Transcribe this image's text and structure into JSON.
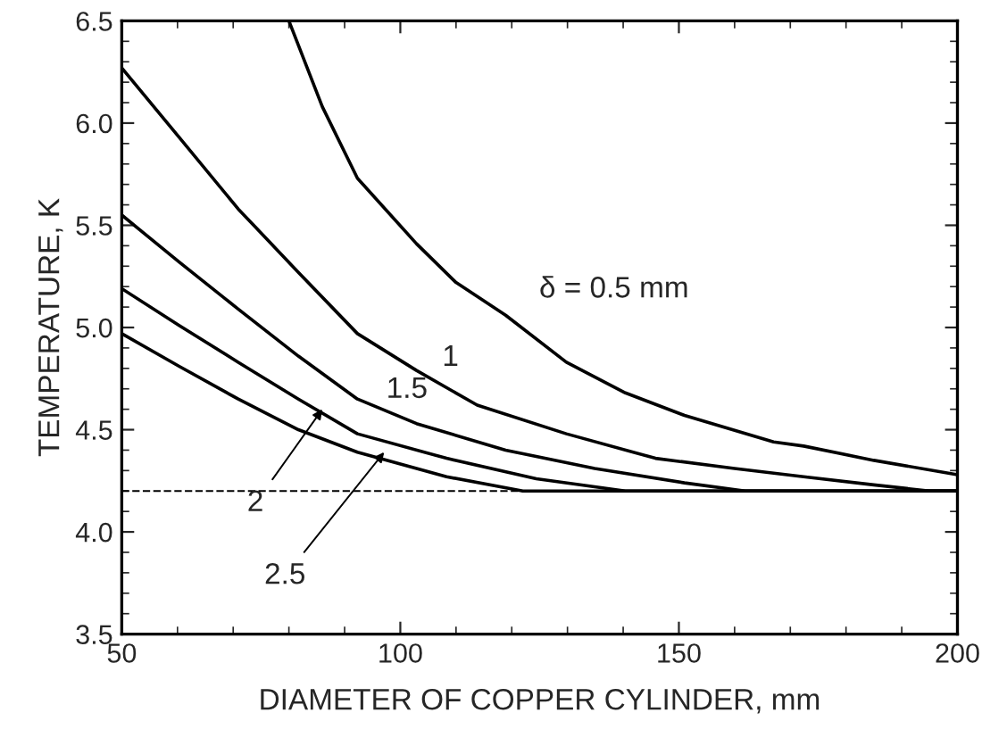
{
  "chart_data": {
    "type": "line",
    "xlabel": "DIAMETER OF COPPER CYLINDER, mm",
    "ylabel": "TEMPERATURE, K",
    "xlim": [
      50,
      200
    ],
    "xticks": [
      50,
      100,
      150,
      200
    ],
    "ylim": [
      3.5,
      6.5
    ],
    "yticks": [
      3.5,
      {
        "value": 4,
        "label": "4.0"
      },
      4.5,
      {
        "value": 5,
        "label": "5.0"
      },
      5.5,
      {
        "value": 6,
        "label": "6.0"
      },
      6.5
    ],
    "grid": false,
    "legend": false,
    "marker": "none",
    "line_style": "solid",
    "series": [
      {
        "color": "#000000",
        "x": [
          80,
          86,
          92.3,
          102.9,
          110,
          118.9,
          129.8,
          140.4,
          151,
          167,
          172.4,
          185,
          200
        ],
        "values": [
          6.5,
          6.08,
          5.73,
          5.41,
          5.22,
          5.06,
          4.83,
          4.68,
          4.57,
          4.44,
          4.42,
          4.35,
          4.28
        ]
      },
      {
        "color": "#000000",
        "x": [
          50,
          60.3,
          70.9,
          81.7,
          92.3,
          102.9,
          113.8,
          129.8,
          145.8,
          160,
          172.4,
          185,
          195,
          200
        ],
        "values": [
          6.27,
          5.93,
          5.58,
          5.27,
          4.97,
          4.79,
          4.62,
          4.48,
          4.36,
          4.31,
          4.27,
          4.23,
          4.2,
          4.2
        ]
      },
      {
        "color": "#000000",
        "x": [
          50,
          60.3,
          70.9,
          81.7,
          92.3,
          102.9,
          118.9,
          134.9,
          151,
          161.9,
          200
        ],
        "values": [
          5.55,
          5.32,
          5.09,
          4.86,
          4.65,
          4.53,
          4.4,
          4.31,
          4.24,
          4.2,
          4.2
        ]
      },
      {
        "color": "#000000",
        "x": [
          50,
          60.3,
          70.9,
          81.7,
          92.3,
          108.3,
          124.4,
          140.4,
          200
        ],
        "values": [
          5.19,
          5.01,
          4.83,
          4.65,
          4.48,
          4.36,
          4.26,
          4.2,
          4.2
        ]
      },
      {
        "color": "#000000",
        "x": [
          50,
          60.3,
          70.9,
          81.7,
          92.3,
          108.3,
          122,
          200
        ],
        "values": [
          4.97,
          4.81,
          4.65,
          4.5,
          4.39,
          4.27,
          4.2,
          4.2
        ]
      }
    ],
    "ref_lines": [
      {
        "axis": "y",
        "value": 4.2,
        "line_style": "dashed",
        "color": "#000000"
      }
    ],
    "annotations": [
      {
        "text": "δ = 0.5 mm",
        "x": 125,
        "y": 4.93
      },
      {
        "text": "1",
        "x": 109,
        "y": 4.68
      },
      {
        "text": "1.5",
        "x": 100.3,
        "y": 4.56
      },
      {
        "text": "2",
        "x": 86,
        "y": 4.6
      },
      {
        "text": "2.5",
        "x": 97.1,
        "y": 4.39
      }
    ]
  }
}
